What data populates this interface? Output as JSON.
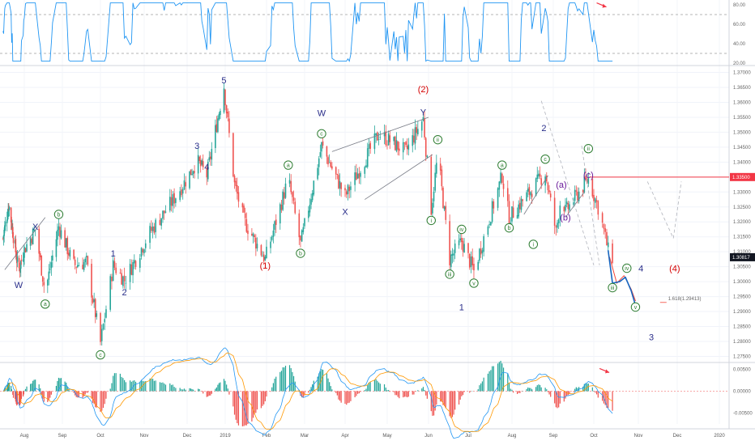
{
  "chart_data": [
    {
      "type": "line",
      "panel": "oscillator",
      "y_ticks": [
        "80.00",
        "60.00",
        "40.00",
        "20.00"
      ],
      "ylim": [
        20,
        85
      ],
      "levels": [
        70,
        30
      ],
      "series": [
        {
          "color": "#2196f3"
        }
      ]
    },
    {
      "type": "candlestick",
      "panel": "price",
      "y_ticks": [
        "1.37000",
        "1.36500",
        "1.36000",
        "1.35500",
        "1.35000",
        "1.34500",
        "1.34000",
        "1.33500",
        "1.33000",
        "1.32500",
        "1.32000",
        "1.31500",
        "1.31000",
        "1.30500",
        "1.30000",
        "1.29500",
        "1.29000",
        "1.28500",
        "1.28000",
        "1.27500"
      ],
      "ylim": [
        1.2735,
        1.3715
      ],
      "x_ticks": [
        "Aug",
        "Sep",
        "Oct",
        "Nov",
        "Dec",
        "2019",
        "Feb",
        "Mar",
        "Apr",
        "May",
        "Jun",
        "Jul",
        "Aug",
        "Sep",
        "Oct",
        "Nov",
        "Dec",
        "2020"
      ],
      "price_badges": [
        {
          "label": "1.33500",
          "value": 1.335,
          "color": "#f23645"
        },
        {
          "label": "1.30817",
          "value": 1.30817,
          "color": "#131722"
        }
      ],
      "fib_annotation": "1.618(1.29413)",
      "colors": {
        "up": "#26a69a",
        "down": "#ef5350",
        "wave_major": "#2a2e8a",
        "wave_primary": "#d50000",
        "wave_minor": "#2e7d32",
        "wave_sub": "#6a1b9a",
        "projection_red": "#f44336",
        "projection_blue": "#1565c0"
      },
      "wave_labels": [
        {
          "text": "W",
          "date": "2018-07-22",
          "price": 1.299,
          "color": "wave_major",
          "circled": false
        },
        {
          "text": "X",
          "date": "2018-08-10",
          "price": 1.3185,
          "color": "wave_major",
          "circled": false
        },
        {
          "text": "a",
          "date": "2018-08-18",
          "price": 1.2925,
          "color": "wave_minor",
          "circled": true
        },
        {
          "text": "b",
          "date": "2018-08-29",
          "price": 1.3225,
          "color": "wave_minor",
          "circled": true
        },
        {
          "text": "c",
          "date": "2018-10-01",
          "price": 1.2755,
          "color": "wave_minor",
          "circled": true
        },
        {
          "text": "1",
          "date": "2018-10-10",
          "price": 1.3095,
          "color": "wave_major",
          "circled": false
        },
        {
          "text": "2",
          "date": "2018-10-18",
          "price": 1.2965,
          "color": "wave_major",
          "circled": false
        },
        {
          "text": "3",
          "date": "2018-12-09",
          "price": 1.3455,
          "color": "wave_major",
          "circled": false
        },
        {
          "text": "4",
          "date": "2018-12-17",
          "price": 1.3385,
          "color": "wave_major",
          "circled": false
        },
        {
          "text": "5",
          "date": "2018-12-31",
          "price": 1.3675,
          "color": "wave_major",
          "circled": false
        },
        {
          "text": "(1)",
          "date": "2019-01-31",
          "price": 1.3055,
          "color": "wave_primary",
          "circled": false
        },
        {
          "text": "a",
          "date": "2019-02-17",
          "price": 1.339,
          "color": "wave_minor",
          "circled": true
        },
        {
          "text": "b",
          "date": "2019-02-26",
          "price": 1.3095,
          "color": "wave_minor",
          "circled": true
        },
        {
          "text": "c",
          "date": "2019-03-14",
          "price": 1.3495,
          "color": "wave_minor",
          "circled": true
        },
        {
          "text": "W",
          "date": "2019-03-14",
          "price": 1.3565,
          "color": "wave_major",
          "circled": false
        },
        {
          "text": "X",
          "date": "2019-04-01",
          "price": 1.3235,
          "color": "wave_major",
          "circled": false
        },
        {
          "text": "(2)",
          "date": "2019-05-28",
          "price": 1.3645,
          "color": "wave_primary",
          "circled": false
        },
        {
          "text": "Y",
          "date": "2019-05-28",
          "price": 1.3567,
          "color": "wave_major",
          "circled": false
        },
        {
          "text": "ii",
          "date": "2019-06-08",
          "price": 1.3475,
          "color": "wave_minor",
          "circled": true
        },
        {
          "text": "i",
          "date": "2019-06-03",
          "price": 1.3205,
          "color": "wave_minor",
          "circled": true
        },
        {
          "text": "iv",
          "date": "2019-06-26",
          "price": 1.3175,
          "color": "wave_minor",
          "circled": true
        },
        {
          "text": "iii",
          "date": "2019-06-17",
          "price": 1.3025,
          "color": "wave_minor",
          "circled": true
        },
        {
          "text": "v",
          "date": "2019-07-05",
          "price": 1.2995,
          "color": "wave_minor",
          "circled": true
        },
        {
          "text": "1",
          "date": "2019-06-26",
          "price": 1.2915,
          "color": "wave_major",
          "circled": false
        },
        {
          "text": "a",
          "date": "2019-07-25",
          "price": 1.339,
          "color": "wave_minor",
          "circled": true
        },
        {
          "text": "b",
          "date": "2019-07-30",
          "price": 1.318,
          "color": "wave_minor",
          "circled": true
        },
        {
          "text": "2",
          "date": "2019-08-25",
          "price": 1.3515,
          "color": "wave_major",
          "circled": false
        },
        {
          "text": "c",
          "date": "2019-08-26",
          "price": 1.341,
          "color": "wave_minor",
          "circled": true
        },
        {
          "text": "i",
          "date": "2019-08-17",
          "price": 1.3125,
          "color": "wave_minor",
          "circled": true
        },
        {
          "text": "(a)",
          "date": "2019-09-07",
          "price": 1.3325,
          "color": "wave_sub",
          "circled": false
        },
        {
          "text": "(b)",
          "date": "2019-09-10",
          "price": 1.3215,
          "color": "wave_sub",
          "circled": false
        },
        {
          "text": "(c)",
          "date": "2019-09-27",
          "price": 1.3358,
          "color": "wave_sub",
          "circled": false
        },
        {
          "text": "ii",
          "date": "2019-09-27",
          "price": 1.3445,
          "color": "wave_minor",
          "circled": true
        },
        {
          "text": "iv",
          "date": "2019-10-24",
          "price": 1.3045,
          "color": "wave_minor",
          "circled": true
        },
        {
          "text": "iii",
          "date": "2019-10-14",
          "price": 1.298,
          "color": "wave_minor",
          "circled": true
        },
        {
          "text": "v",
          "date": "2019-10-30",
          "price": 1.2915,
          "color": "wave_minor",
          "circled": true
        },
        {
          "text": "4",
          "date": "2019-11-03",
          "price": 1.3045,
          "color": "wave_major",
          "circled": false
        },
        {
          "text": "(4)",
          "date": "2019-11-29",
          "price": 1.3045,
          "color": "wave_primary",
          "circled": false
        },
        {
          "text": "3",
          "date": "2019-11-11",
          "price": 1.2815,
          "color": "wave_major",
          "circled": false
        }
      ]
    },
    {
      "type": "histogram",
      "panel": "macd",
      "y_ticks": [
        "0.00500",
        "0.00000",
        "-0.00500"
      ],
      "ylim": [
        -0.0075,
        0.0062
      ],
      "series": [
        {
          "color": "#2196f3"
        },
        {
          "color": "#ff9800"
        }
      ],
      "colors": {
        "hist_up": "#26a69a",
        "hist_down": "#ef5350"
      }
    }
  ]
}
